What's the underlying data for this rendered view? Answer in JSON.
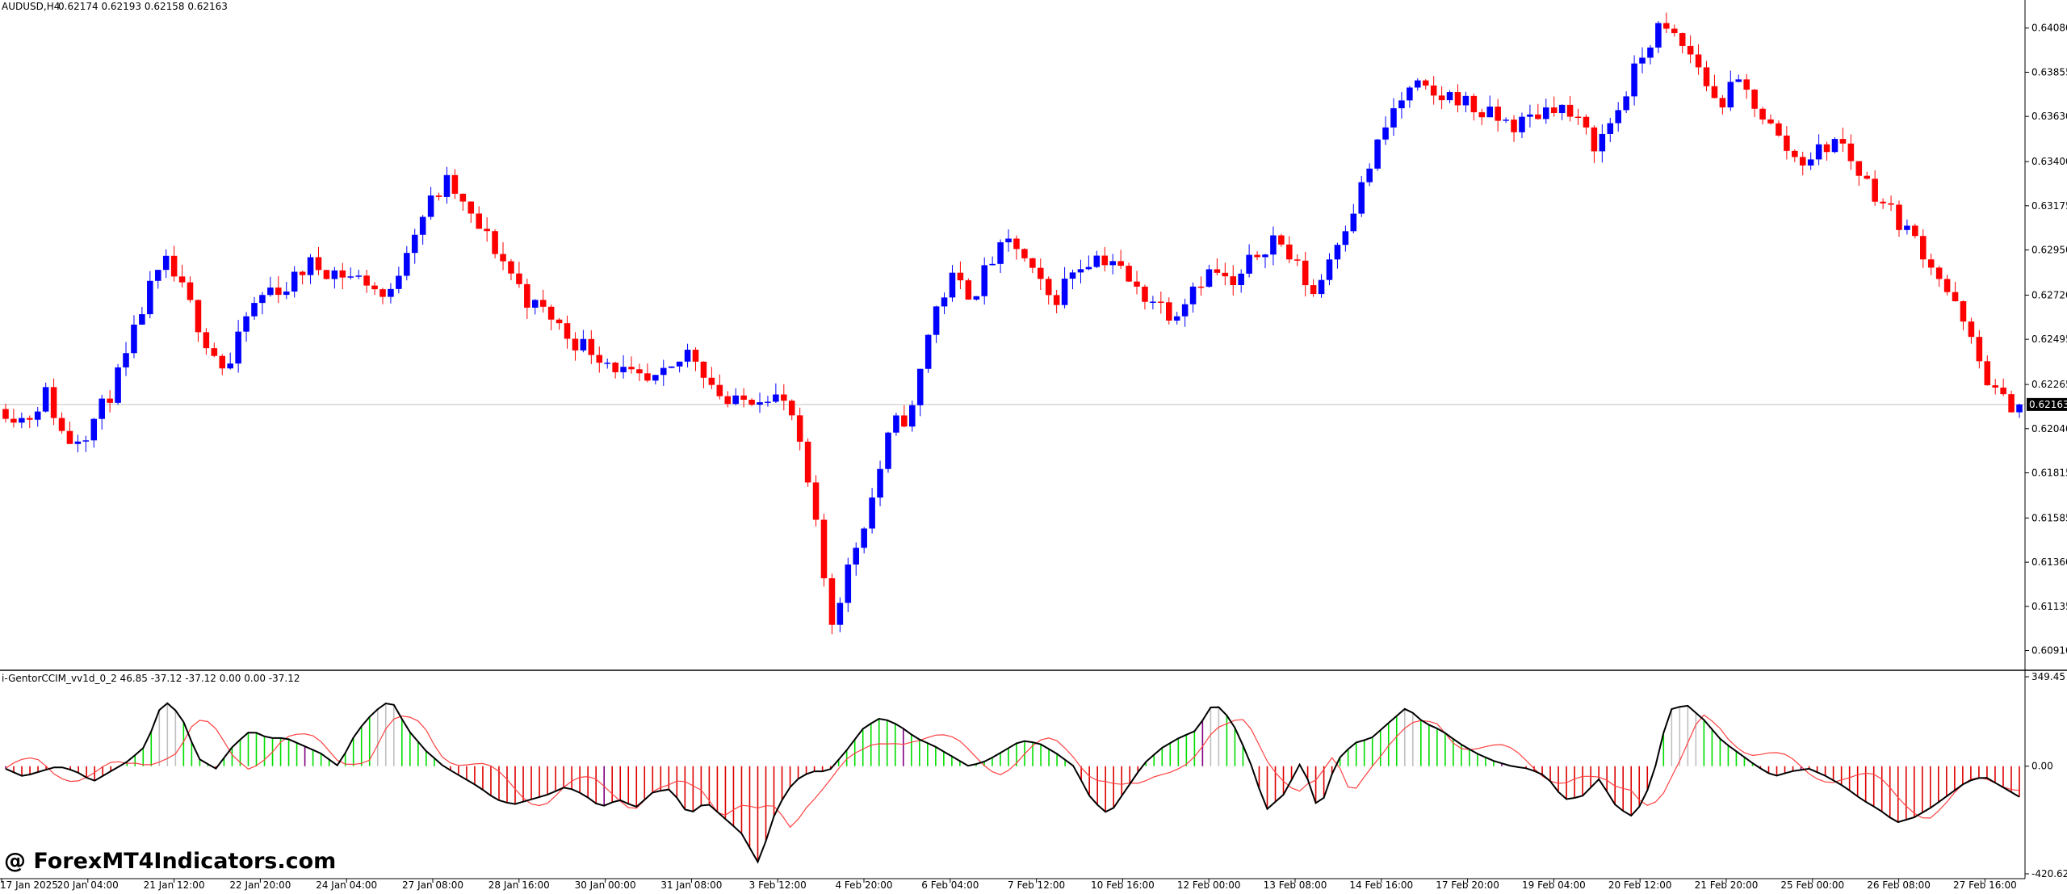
{
  "header": {
    "symbol_timeframe": "AUDUSD,H4",
    "ohlc_values": "0.62174 0.62193 0.62158 0.62163"
  },
  "indicator": {
    "header_text": "i-GentorCCIM_vv1d_0_2 46.85 -37.12 -37.12 0.00 0.00 -37.12"
  },
  "watermark": "@ ForexMT4Indicators.com",
  "colors": {
    "background": "#ffffff",
    "bull_candle": "#0000ff",
    "bear_candle": "#ff0000",
    "histogram_pos": "#00dd00",
    "histogram_neg": "#dd0000",
    "histogram_neutral": "#c0c0c0",
    "histogram_marker": "#800080",
    "cci_line": "#000000",
    "signal_line": "#ff4040",
    "current_price_line": "#c0c0c0"
  },
  "chart_data": [
    {
      "type": "candlestick",
      "title": "AUDUSD,H4",
      "y_ticks": [
        "0.64080",
        "0.63855",
        "0.63630",
        "0.63400",
        "0.63175",
        "0.62950",
        "0.62720",
        "0.62495",
        "0.62265",
        "0.62040",
        "0.61815",
        "0.61585",
        "0.61360",
        "0.61135",
        "0.60910"
      ],
      "ylim": [
        0.6083,
        0.6419
      ],
      "current_price": "0.62163",
      "x_labels": [
        "17 Jan 2025",
        "20 Jan 04:00",
        "21 Jan 12:00",
        "22 Jan 20:00",
        "24 Jan 04:00",
        "27 Jan 08:00",
        "28 Jan 16:00",
        "30 Jan 00:00",
        "31 Jan 08:00",
        "3 Feb 12:00",
        "4 Feb 20:00",
        "6 Feb 04:00",
        "7 Feb 12:00",
        "10 Feb 16:00",
        "12 Feb 00:00",
        "13 Feb 08:00",
        "14 Feb 16:00",
        "17 Feb 20:00",
        "19 Feb 04:00",
        "20 Feb 12:00",
        "21 Feb 20:00",
        "25 Feb 00:00",
        "26 Feb 08:00",
        "27 Feb 16:00"
      ],
      "close_path": [
        0.6214,
        0.6208,
        0.6222,
        0.6197,
        0.6203,
        0.6218,
        0.624,
        0.6272,
        0.6288,
        0.627,
        0.6248,
        0.6232,
        0.6262,
        0.6275,
        0.6276,
        0.6288,
        0.6285,
        0.6282,
        0.6279,
        0.6268,
        0.63,
        0.6318,
        0.633,
        0.6312,
        0.63,
        0.6285,
        0.6268,
        0.6262,
        0.625,
        0.6245,
        0.6238,
        0.623,
        0.6226,
        0.6232,
        0.6245,
        0.6228,
        0.6215,
        0.622,
        0.6223,
        0.6212,
        0.6168,
        0.6105,
        0.6138,
        0.6168,
        0.6205,
        0.6212,
        0.6262,
        0.628,
        0.6272,
        0.629,
        0.63,
        0.6282,
        0.6268,
        0.6285,
        0.6292,
        0.629,
        0.6275,
        0.627,
        0.6262,
        0.6278,
        0.6285,
        0.6275,
        0.6292,
        0.6302,
        0.6288,
        0.6272,
        0.6298,
        0.6318,
        0.6345,
        0.6368,
        0.6378,
        0.6372,
        0.6374,
        0.6366,
        0.6362,
        0.6358,
        0.6364,
        0.637,
        0.636,
        0.6348,
        0.6365,
        0.6388,
        0.6408,
        0.6402,
        0.639,
        0.6368,
        0.638,
        0.6368,
        0.6352,
        0.634,
        0.6345,
        0.6352,
        0.6335,
        0.6322,
        0.631,
        0.6298,
        0.6282,
        0.6262,
        0.6238,
        0.6218,
        0.6216
      ]
    },
    {
      "type": "oscillator",
      "title": "i-GentorCCIM_vv1d_0_2",
      "y_ticks": [
        "349.45",
        "0.00",
        "-420.62"
      ],
      "ylim": [
        -420.62,
        349.45
      ],
      "cci_path": [
        -10,
        -40,
        -20,
        0,
        -20,
        -60,
        -20,
        20,
        80,
        260,
        200,
        30,
        -10,
        80,
        140,
        110,
        110,
        80,
        50,
        0,
        130,
        210,
        260,
        140,
        60,
        0,
        -40,
        -80,
        -130,
        -150,
        -130,
        -110,
        -80,
        -110,
        -160,
        -130,
        -160,
        -100,
        -90,
        -190,
        -140,
        -200,
        -260,
        -380,
        -170,
        -60,
        -20,
        -20,
        60,
        150,
        190,
        160,
        110,
        80,
        40,
        0,
        20,
        60,
        100,
        90,
        50,
        0,
        -130,
        -190,
        -90,
        10,
        70,
        110,
        140,
        250,
        180,
        30,
        -170,
        -110,
        20,
        -180,
        20,
        90,
        110,
        170,
        230,
        170,
        140,
        90,
        50,
        20,
        0,
        -10,
        -40,
        -130,
        -120,
        -50,
        -160,
        -200,
        -60,
        220,
        240,
        180,
        100,
        50,
        0,
        -40,
        -20,
        -10,
        -40,
        -80,
        -130,
        -170,
        -220,
        -200,
        -160,
        -110,
        -60,
        -40,
        -80,
        -120
      ]
    }
  ]
}
